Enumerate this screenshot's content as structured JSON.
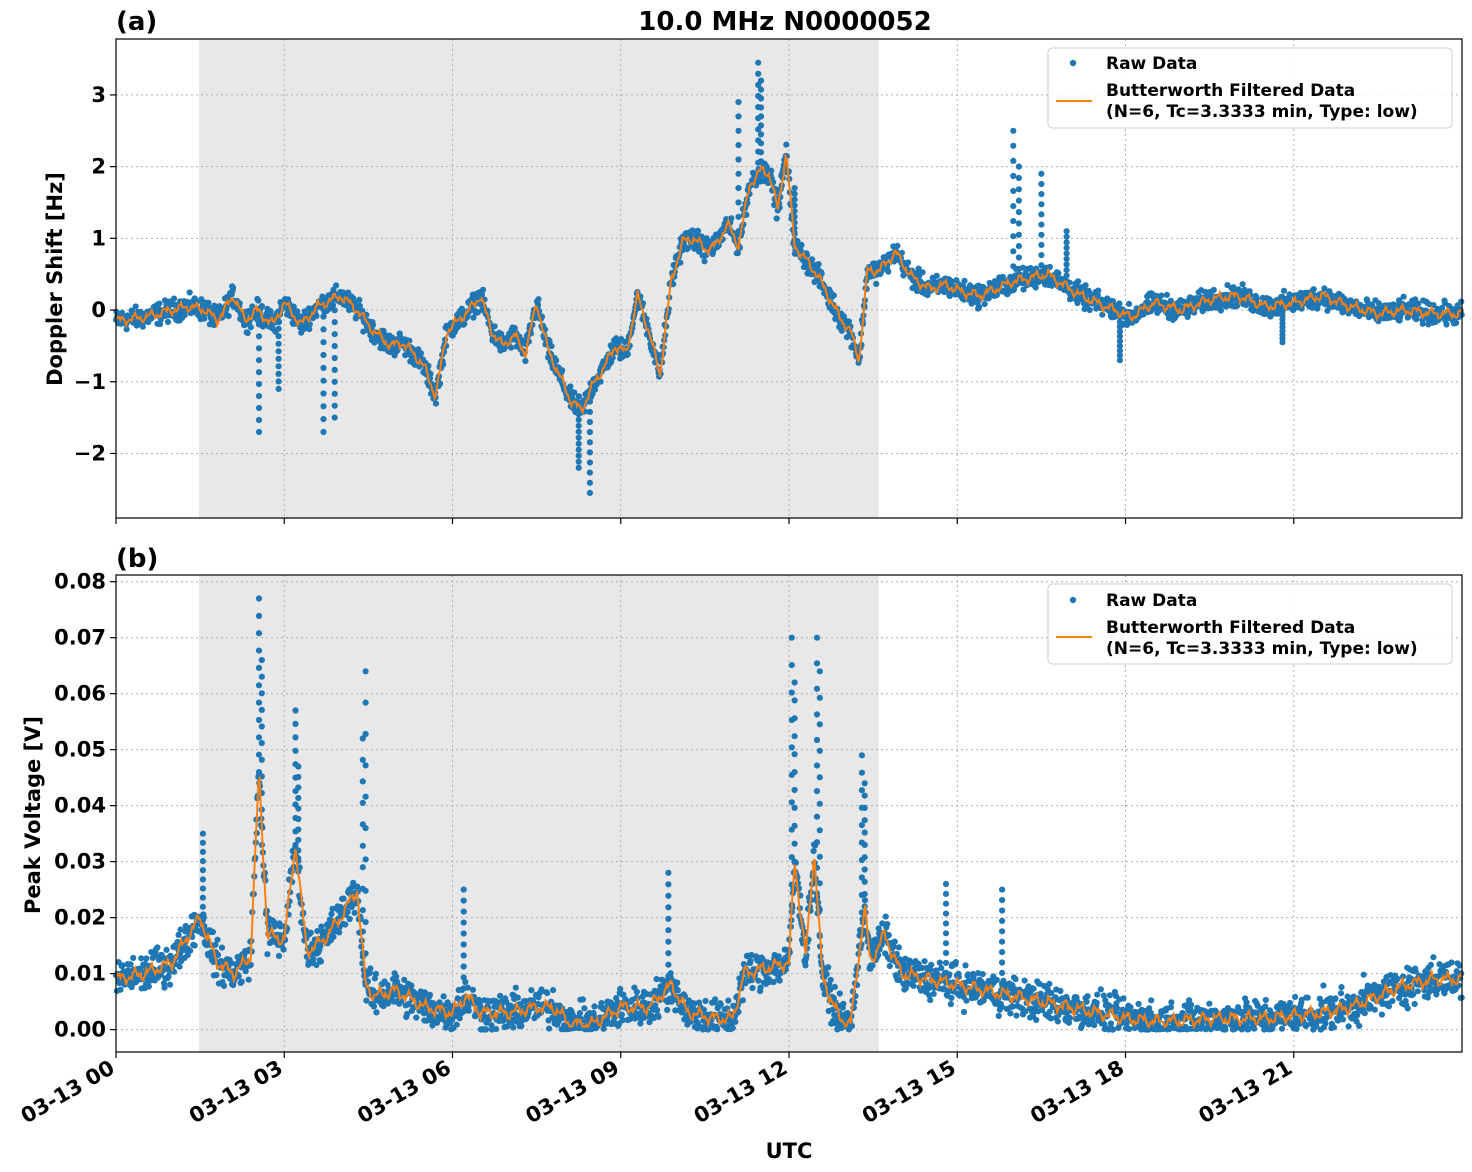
{
  "figure": {
    "title": "10.0 MHz N0000052",
    "xlabel": "UTC",
    "x_tick_labels": [
      "03-13 00",
      "03-13 03",
      "03-13 06",
      "03-13 09",
      "03-13 12",
      "03-13 15",
      "03-13 18",
      "03-13 21"
    ],
    "colors": {
      "raw": "#1f77b4",
      "filtered": "#ff7f0e",
      "shade": "#e8e8e8",
      "grid": "#b0b0b0"
    }
  },
  "chart_data": [
    {
      "type": "scatter",
      "panel_label": "(a)",
      "title": "10.0 MHz N0000052",
      "xlabel": "",
      "ylabel": "Doppler Shift [Hz]",
      "x_unit": "hours UTC on 03-13",
      "xlim": [
        0,
        24
      ],
      "ylim": [
        -2.9,
        3.78
      ],
      "yticks": [
        -2,
        -1,
        0,
        1,
        2,
        3
      ],
      "ytick_labels": [
        "−2",
        "−1",
        "0",
        "1",
        "2",
        "3"
      ],
      "grid": true,
      "shaded_interval": [
        1.48,
        13.6
      ],
      "legend_position": "upper right",
      "series": [
        {
          "name": "Raw Data",
          "style": "points",
          "spread": 0.22,
          "x": [
            0,
            0.5,
            1.0,
            1.3,
            1.6,
            1.8,
            2.1,
            2.3,
            2.5,
            2.8,
            3.0,
            3.3,
            3.6,
            4.0,
            4.3,
            4.6,
            4.9,
            5.1,
            5.3,
            5.5,
            5.7,
            5.9,
            6.1,
            6.3,
            6.5,
            6.7,
            6.9,
            7.1,
            7.3,
            7.5,
            7.7,
            7.9,
            8.1,
            8.3,
            8.5,
            8.7,
            8.9,
            9.1,
            9.3,
            9.5,
            9.7,
            9.9,
            10.1,
            10.3,
            10.5,
            10.7,
            10.9,
            11.1,
            11.3,
            11.5,
            11.65,
            11.8,
            11.95,
            12.1,
            12.3,
            12.5,
            12.7,
            12.9,
            13.1,
            13.25,
            13.4,
            13.6,
            13.9,
            14.2,
            14.5,
            14.8,
            15.1,
            15.4,
            15.7,
            16.0,
            16.3,
            16.6,
            16.9,
            17.2,
            17.5,
            17.8,
            18.1,
            18.5,
            19.0,
            19.5,
            20.0,
            20.5,
            21.0,
            21.5,
            22.0,
            22.5,
            23.0,
            23.5,
            24.0
          ],
          "y": [
            -0.15,
            -0.1,
            0.0,
            0.05,
            0.0,
            -0.15,
            0.2,
            -0.15,
            0.0,
            -0.2,
            0.1,
            -0.2,
            0.05,
            0.2,
            0.0,
            -0.3,
            -0.5,
            -0.45,
            -0.6,
            -0.8,
            -1.2,
            -0.3,
            -0.15,
            0.0,
            0.2,
            -0.3,
            -0.5,
            -0.35,
            -0.6,
            0.1,
            -0.55,
            -0.9,
            -1.25,
            -1.4,
            -1.05,
            -0.8,
            -0.5,
            -0.6,
            0.2,
            -0.3,
            -0.9,
            0.4,
            0.95,
            1.0,
            0.85,
            0.9,
            1.2,
            0.9,
            1.75,
            1.95,
            1.9,
            1.4,
            2.2,
            0.9,
            0.7,
            0.5,
            0.2,
            -0.1,
            -0.3,
            -0.7,
            0.55,
            0.55,
            0.8,
            0.45,
            0.3,
            0.35,
            0.25,
            0.2,
            0.3,
            0.4,
            0.45,
            0.5,
            0.35,
            0.2,
            0.1,
            0.0,
            -0.1,
            0.1,
            0.0,
            0.15,
            0.2,
            0.05,
            0.1,
            0.2,
            0.05,
            -0.05,
            0.0,
            -0.05,
            -0.05
          ]
        },
        {
          "name": "Butterworth Filtered Data\n(N=6, Tc=3.3333 min, Type: low)",
          "style": "line",
          "x": [
            0,
            0.5,
            1.0,
            1.3,
            1.6,
            1.8,
            2.1,
            2.3,
            2.5,
            2.8,
            3.0,
            3.3,
            3.6,
            4.0,
            4.3,
            4.6,
            4.9,
            5.1,
            5.3,
            5.5,
            5.7,
            5.9,
            6.1,
            6.3,
            6.5,
            6.7,
            6.9,
            7.1,
            7.3,
            7.5,
            7.7,
            7.9,
            8.1,
            8.3,
            8.5,
            8.7,
            8.9,
            9.1,
            9.3,
            9.5,
            9.7,
            9.9,
            10.1,
            10.3,
            10.5,
            10.7,
            10.9,
            11.1,
            11.3,
            11.5,
            11.65,
            11.8,
            11.95,
            12.1,
            12.3,
            12.5,
            12.7,
            12.9,
            13.1,
            13.25,
            13.4,
            13.6,
            13.9,
            14.2,
            14.5,
            14.8,
            15.1,
            15.4,
            15.7,
            16.0,
            16.3,
            16.6,
            16.9,
            17.2,
            17.5,
            17.8,
            18.1,
            18.5,
            19.0,
            19.5,
            20.0,
            20.5,
            21.0,
            21.5,
            22.0,
            22.5,
            23.0,
            23.5,
            24.0
          ],
          "y": [
            -0.15,
            -0.1,
            0.0,
            0.05,
            0.0,
            -0.15,
            0.2,
            -0.15,
            0.0,
            -0.2,
            0.1,
            -0.2,
            0.05,
            0.2,
            0.0,
            -0.3,
            -0.5,
            -0.45,
            -0.6,
            -0.8,
            -1.2,
            -0.3,
            -0.15,
            0.0,
            0.2,
            -0.3,
            -0.5,
            -0.35,
            -0.6,
            0.1,
            -0.55,
            -0.9,
            -1.25,
            -1.4,
            -1.05,
            -0.8,
            -0.5,
            -0.6,
            0.2,
            -0.3,
            -0.9,
            0.4,
            0.95,
            1.0,
            0.85,
            0.9,
            1.2,
            0.9,
            1.75,
            1.95,
            1.9,
            1.4,
            2.2,
            0.9,
            0.7,
            0.5,
            0.2,
            -0.1,
            -0.3,
            -0.7,
            0.55,
            0.55,
            0.8,
            0.45,
            0.3,
            0.35,
            0.25,
            0.2,
            0.3,
            0.4,
            0.45,
            0.5,
            0.35,
            0.2,
            0.1,
            0.0,
            -0.1,
            0.1,
            0.0,
            0.15,
            0.2,
            0.05,
            0.1,
            0.2,
            0.05,
            -0.05,
            0.0,
            -0.05,
            -0.05
          ]
        }
      ],
      "outliers": [
        [
          2.55,
          -1.7
        ],
        [
          2.9,
          -1.1
        ],
        [
          3.7,
          -1.7
        ],
        [
          3.9,
          -1.5
        ],
        [
          8.45,
          -2.55
        ],
        [
          8.25,
          -2.2
        ],
        [
          11.45,
          3.45
        ],
        [
          11.5,
          3.2
        ],
        [
          11.1,
          2.9
        ],
        [
          11.6,
          2.0
        ],
        [
          12.1,
          1.7
        ],
        [
          16.0,
          2.5
        ],
        [
          16.1,
          2.0
        ],
        [
          16.5,
          1.9
        ],
        [
          16.95,
          1.1
        ],
        [
          17.9,
          -0.7
        ],
        [
          20.8,
          -0.45
        ]
      ]
    },
    {
      "type": "scatter",
      "panel_label": "(b)",
      "title": "",
      "xlabel": "UTC",
      "ylabel": "Peak Voltage [V]",
      "x_unit": "hours UTC on 03-13",
      "xlim": [
        0,
        24
      ],
      "ylim": [
        -0.004,
        0.0812
      ],
      "yticks": [
        0.0,
        0.01,
        0.02,
        0.03,
        0.04,
        0.05,
        0.06,
        0.07,
        0.08
      ],
      "ytick_labels": [
        "0.00",
        "0.01",
        "0.02",
        "0.03",
        "0.04",
        "0.05",
        "0.06",
        "0.07",
        "0.08"
      ],
      "grid": true,
      "shaded_interval": [
        1.48,
        13.6
      ],
      "legend_position": "upper right",
      "series": [
        {
          "name": "Raw Data",
          "style": "points",
          "spread": 0.005,
          "x": [
            0,
            0.5,
            1.0,
            1.3,
            1.5,
            1.8,
            2.1,
            2.4,
            2.55,
            2.7,
            3.0,
            3.2,
            3.4,
            3.7,
            4.0,
            4.3,
            4.45,
            4.6,
            5.0,
            5.5,
            6.0,
            6.25,
            6.5,
            7.0,
            7.5,
            7.8,
            8.1,
            8.5,
            9.0,
            9.5,
            9.9,
            10.2,
            10.7,
            11.0,
            11.2,
            11.6,
            12.0,
            12.1,
            12.3,
            12.45,
            12.6,
            12.9,
            13.1,
            13.35,
            13.45,
            13.7,
            14.0,
            14.5,
            15.0,
            15.5,
            16.0,
            16.5,
            17.0,
            17.5,
            18.0,
            18.5,
            19.0,
            19.5,
            20.0,
            20.5,
            21.0,
            21.5,
            22.0,
            22.5,
            23.0,
            23.5,
            24.0
          ],
          "y": [
            0.009,
            0.01,
            0.012,
            0.017,
            0.02,
            0.012,
            0.01,
            0.013,
            0.046,
            0.017,
            0.016,
            0.033,
            0.014,
            0.016,
            0.02,
            0.025,
            0.008,
            0.006,
            0.007,
            0.004,
            0.003,
            0.006,
            0.003,
            0.003,
            0.004,
            0.004,
            0.001,
            0.001,
            0.004,
            0.004,
            0.008,
            0.003,
            0.002,
            0.002,
            0.01,
            0.011,
            0.012,
            0.03,
            0.013,
            0.032,
            0.009,
            0.002,
            0.001,
            0.022,
            0.012,
            0.017,
            0.01,
            0.009,
            0.008,
            0.007,
            0.006,
            0.005,
            0.004,
            0.003,
            0.002,
            0.0015,
            0.0015,
            0.002,
            0.002,
            0.002,
            0.0025,
            0.003,
            0.004,
            0.006,
            0.008,
            0.009,
            0.009
          ]
        },
        {
          "name": "Butterworth Filtered Data\n(N=6, Tc=3.3333 min, Type: low)",
          "style": "line",
          "x": [
            0,
            0.5,
            1.0,
            1.3,
            1.5,
            1.8,
            2.1,
            2.4,
            2.55,
            2.7,
            3.0,
            3.2,
            3.4,
            3.7,
            4.0,
            4.3,
            4.45,
            4.6,
            5.0,
            5.5,
            6.0,
            6.25,
            6.5,
            7.0,
            7.5,
            7.8,
            8.1,
            8.5,
            9.0,
            9.5,
            9.9,
            10.2,
            10.7,
            11.0,
            11.2,
            11.6,
            12.0,
            12.1,
            12.3,
            12.45,
            12.6,
            12.9,
            13.1,
            13.35,
            13.45,
            13.7,
            14.0,
            14.5,
            15.0,
            15.5,
            16.0,
            16.5,
            17.0,
            17.5,
            18.0,
            18.5,
            19.0,
            19.5,
            20.0,
            20.5,
            21.0,
            21.5,
            22.0,
            22.5,
            23.0,
            23.5,
            24.0
          ],
          "y": [
            0.009,
            0.01,
            0.012,
            0.017,
            0.02,
            0.012,
            0.01,
            0.013,
            0.046,
            0.017,
            0.016,
            0.033,
            0.014,
            0.016,
            0.02,
            0.025,
            0.008,
            0.006,
            0.007,
            0.004,
            0.003,
            0.006,
            0.003,
            0.003,
            0.004,
            0.004,
            0.001,
            0.001,
            0.004,
            0.004,
            0.008,
            0.003,
            0.002,
            0.002,
            0.01,
            0.011,
            0.012,
            0.03,
            0.013,
            0.032,
            0.009,
            0.002,
            0.001,
            0.022,
            0.012,
            0.017,
            0.01,
            0.009,
            0.008,
            0.007,
            0.006,
            0.005,
            0.004,
            0.003,
            0.002,
            0.0015,
            0.0015,
            0.002,
            0.002,
            0.002,
            0.0025,
            0.003,
            0.004,
            0.006,
            0.008,
            0.009,
            0.009
          ]
        }
      ],
      "outliers": [
        [
          2.55,
          0.077
        ],
        [
          2.6,
          0.066
        ],
        [
          3.2,
          0.057
        ],
        [
          3.25,
          0.047
        ],
        [
          4.45,
          0.064
        ],
        [
          4.4,
          0.052
        ],
        [
          6.2,
          0.025
        ],
        [
          9.85,
          0.028
        ],
        [
          12.05,
          0.07
        ],
        [
          12.1,
          0.062
        ],
        [
          12.5,
          0.07
        ],
        [
          12.55,
          0.064
        ],
        [
          13.3,
          0.049
        ],
        [
          13.35,
          0.044
        ],
        [
          14.8,
          0.026
        ],
        [
          15.8,
          0.025
        ],
        [
          1.55,
          0.035
        ]
      ]
    }
  ]
}
